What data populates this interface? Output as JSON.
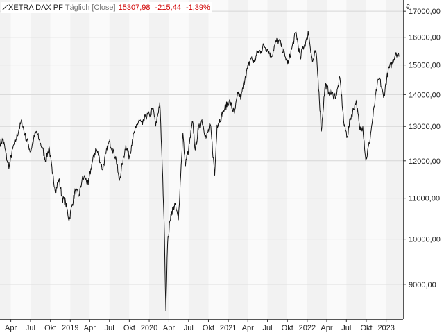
{
  "header": {
    "symbol": "XETRA DAX PF",
    "period": "Täglich [Close]",
    "price": "15307,98",
    "change": "-215,44",
    "change_pct": "-1,39%"
  },
  "colors": {
    "line": "#111111",
    "band_a": "#f2f2f2",
    "band_b": "#fafafa",
    "grid": "#d6d6d6",
    "negative": "#d00000"
  },
  "chart_data": {
    "type": "line",
    "title": "XETRA DAX PF",
    "unit": "€",
    "x_range": [
      "2018-02-10",
      "2023-03-20"
    ],
    "ylim": [
      8300,
      17450
    ],
    "grid": true,
    "y_ticks": [
      {
        "value": 9000,
        "label": "9000,00"
      },
      {
        "value": 10000,
        "label": "10000,00"
      },
      {
        "value": 11000,
        "label": "11000,00"
      },
      {
        "value": 12000,
        "label": "12000,00"
      },
      {
        "value": 13000,
        "label": "13000,00"
      },
      {
        "value": 14000,
        "label": "14000,00"
      },
      {
        "value": 15000,
        "label": "15000,00"
      },
      {
        "value": 16000,
        "label": "16000,00"
      },
      {
        "value": 17000,
        "label": "17000,00"
      }
    ],
    "x_ticks": [
      {
        "date": "2018-04-01",
        "label": "Apr"
      },
      {
        "date": "2018-07-01",
        "label": "Jul"
      },
      {
        "date": "2018-10-01",
        "label": "Okt"
      },
      {
        "date": "2019-01-01",
        "label": "2019"
      },
      {
        "date": "2019-04-01",
        "label": "Apr"
      },
      {
        "date": "2019-07-01",
        "label": "Jul"
      },
      {
        "date": "2019-10-01",
        "label": "Okt"
      },
      {
        "date": "2020-01-01",
        "label": "2020"
      },
      {
        "date": "2020-04-01",
        "label": "Apr"
      },
      {
        "date": "2020-07-01",
        "label": "Jul"
      },
      {
        "date": "2020-10-01",
        "label": "Okt"
      },
      {
        "date": "2021-01-01",
        "label": "2021"
      },
      {
        "date": "2021-04-01",
        "label": "Apr"
      },
      {
        "date": "2021-07-01",
        "label": "Jul"
      },
      {
        "date": "2021-10-01",
        "label": "Okt"
      },
      {
        "date": "2022-01-01",
        "label": "2022"
      },
      {
        "date": "2022-04-01",
        "label": "Apr"
      },
      {
        "date": "2022-07-01",
        "label": "Jul"
      },
      {
        "date": "2022-10-01",
        "label": "Okt"
      },
      {
        "date": "2023-01-01",
        "label": "2023"
      }
    ],
    "series": [
      {
        "name": "XETRA DAX PF",
        "points": [
          [
            "2018-02-10",
            12500
          ],
          [
            "2018-02-25",
            12600
          ],
          [
            "2018-03-15",
            12000
          ],
          [
            "2018-03-25",
            11850
          ],
          [
            "2018-04-10",
            12350
          ],
          [
            "2018-04-25",
            12600
          ],
          [
            "2018-05-10",
            12950
          ],
          [
            "2018-05-22",
            13150
          ],
          [
            "2018-06-05",
            12750
          ],
          [
            "2018-06-20",
            12500
          ],
          [
            "2018-07-01",
            12250
          ],
          [
            "2018-07-15",
            12600
          ],
          [
            "2018-07-28",
            12850
          ],
          [
            "2018-08-10",
            12600
          ],
          [
            "2018-08-25",
            12350
          ],
          [
            "2018-09-10",
            12000
          ],
          [
            "2018-09-25",
            12400
          ],
          [
            "2018-10-10",
            11650
          ],
          [
            "2018-10-25",
            11200
          ],
          [
            "2018-11-10",
            11500
          ],
          [
            "2018-11-25",
            11000
          ],
          [
            "2018-12-10",
            10900
          ],
          [
            "2018-12-27",
            10450
          ],
          [
            "2019-01-10",
            10850
          ],
          [
            "2019-01-25",
            11200
          ],
          [
            "2019-02-10",
            11050
          ],
          [
            "2019-02-25",
            11500
          ],
          [
            "2019-03-10",
            11550
          ],
          [
            "2019-03-25",
            11350
          ],
          [
            "2019-04-10",
            11900
          ],
          [
            "2019-04-30",
            12350
          ],
          [
            "2019-05-15",
            12100
          ],
          [
            "2019-05-30",
            11750
          ],
          [
            "2019-06-15",
            12200
          ],
          [
            "2019-07-01",
            12550
          ],
          [
            "2019-07-15",
            12350
          ],
          [
            "2019-08-01",
            12050
          ],
          [
            "2019-08-15",
            11450
          ],
          [
            "2019-08-30",
            11900
          ],
          [
            "2019-09-15",
            12450
          ],
          [
            "2019-10-01",
            12100
          ],
          [
            "2019-10-15",
            12600
          ],
          [
            "2019-11-01",
            12950
          ],
          [
            "2019-11-15",
            13200
          ],
          [
            "2019-12-01",
            13050
          ],
          [
            "2019-12-15",
            13300
          ],
          [
            "2020-01-02",
            13350
          ],
          [
            "2020-01-20",
            13550
          ],
          [
            "2020-01-31",
            13000
          ],
          [
            "2020-02-19",
            13750
          ],
          [
            "2020-03-01",
            11900
          ],
          [
            "2020-03-10",
            10400
          ],
          [
            "2020-03-18",
            8450
          ],
          [
            "2020-03-26",
            9900
          ],
          [
            "2020-04-10",
            10600
          ],
          [
            "2020-04-30",
            10850
          ],
          [
            "2020-05-15",
            10450
          ],
          [
            "2020-06-05",
            12800
          ],
          [
            "2020-06-15",
            11900
          ],
          [
            "2020-07-01",
            12300
          ],
          [
            "2020-07-20",
            13150
          ],
          [
            "2020-08-01",
            12300
          ],
          [
            "2020-08-15",
            12900
          ],
          [
            "2020-09-01",
            13200
          ],
          [
            "2020-09-20",
            12650
          ],
          [
            "2020-10-10",
            13050
          ],
          [
            "2020-10-30",
            11600
          ],
          [
            "2020-11-10",
            13050
          ],
          [
            "2020-11-30",
            13300
          ],
          [
            "2020-12-15",
            13550
          ],
          [
            "2021-01-05",
            13800
          ],
          [
            "2021-01-29",
            13400
          ],
          [
            "2021-02-15",
            14050
          ],
          [
            "2021-03-01",
            13900
          ],
          [
            "2021-03-20",
            14600
          ],
          [
            "2021-04-15",
            15250
          ],
          [
            "2021-05-01",
            15100
          ],
          [
            "2021-05-15",
            15450
          ],
          [
            "2021-06-01",
            15500
          ],
          [
            "2021-06-15",
            15700
          ],
          [
            "2021-07-01",
            15550
          ],
          [
            "2021-07-20",
            15300
          ],
          [
            "2021-08-01",
            15650
          ],
          [
            "2021-08-15",
            15900
          ],
          [
            "2021-09-01",
            15750
          ],
          [
            "2021-09-20",
            15300
          ],
          [
            "2021-10-05",
            15050
          ],
          [
            "2021-10-20",
            15550
          ],
          [
            "2021-11-10",
            16200
          ],
          [
            "2021-11-30",
            15200
          ],
          [
            "2021-12-10",
            15600
          ],
          [
            "2021-12-31",
            15900
          ],
          [
            "2022-01-05",
            16250
          ],
          [
            "2022-01-25",
            15100
          ],
          [
            "2022-02-10",
            15500
          ],
          [
            "2022-02-24",
            14100
          ],
          [
            "2022-03-07",
            12850
          ],
          [
            "2022-03-25",
            14350
          ],
          [
            "2022-04-10",
            14100
          ],
          [
            "2022-04-30",
            14000
          ],
          [
            "2022-05-15",
            13950
          ],
          [
            "2022-06-01",
            14550
          ],
          [
            "2022-06-20",
            13050
          ],
          [
            "2022-07-05",
            12700
          ],
          [
            "2022-07-20",
            13250
          ],
          [
            "2022-08-15",
            13800
          ],
          [
            "2022-09-01",
            12900
          ],
          [
            "2022-09-15",
            13000
          ],
          [
            "2022-09-29",
            12000
          ],
          [
            "2022-10-15",
            12500
          ],
          [
            "2022-11-01",
            13300
          ],
          [
            "2022-11-20",
            14300
          ],
          [
            "2022-12-01",
            14550
          ],
          [
            "2022-12-20",
            13900
          ],
          [
            "2023-01-10",
            14800
          ],
          [
            "2023-01-30",
            15100
          ],
          [
            "2023-02-15",
            15450
          ],
          [
            "2023-03-01",
            15300
          ]
        ]
      }
    ]
  }
}
